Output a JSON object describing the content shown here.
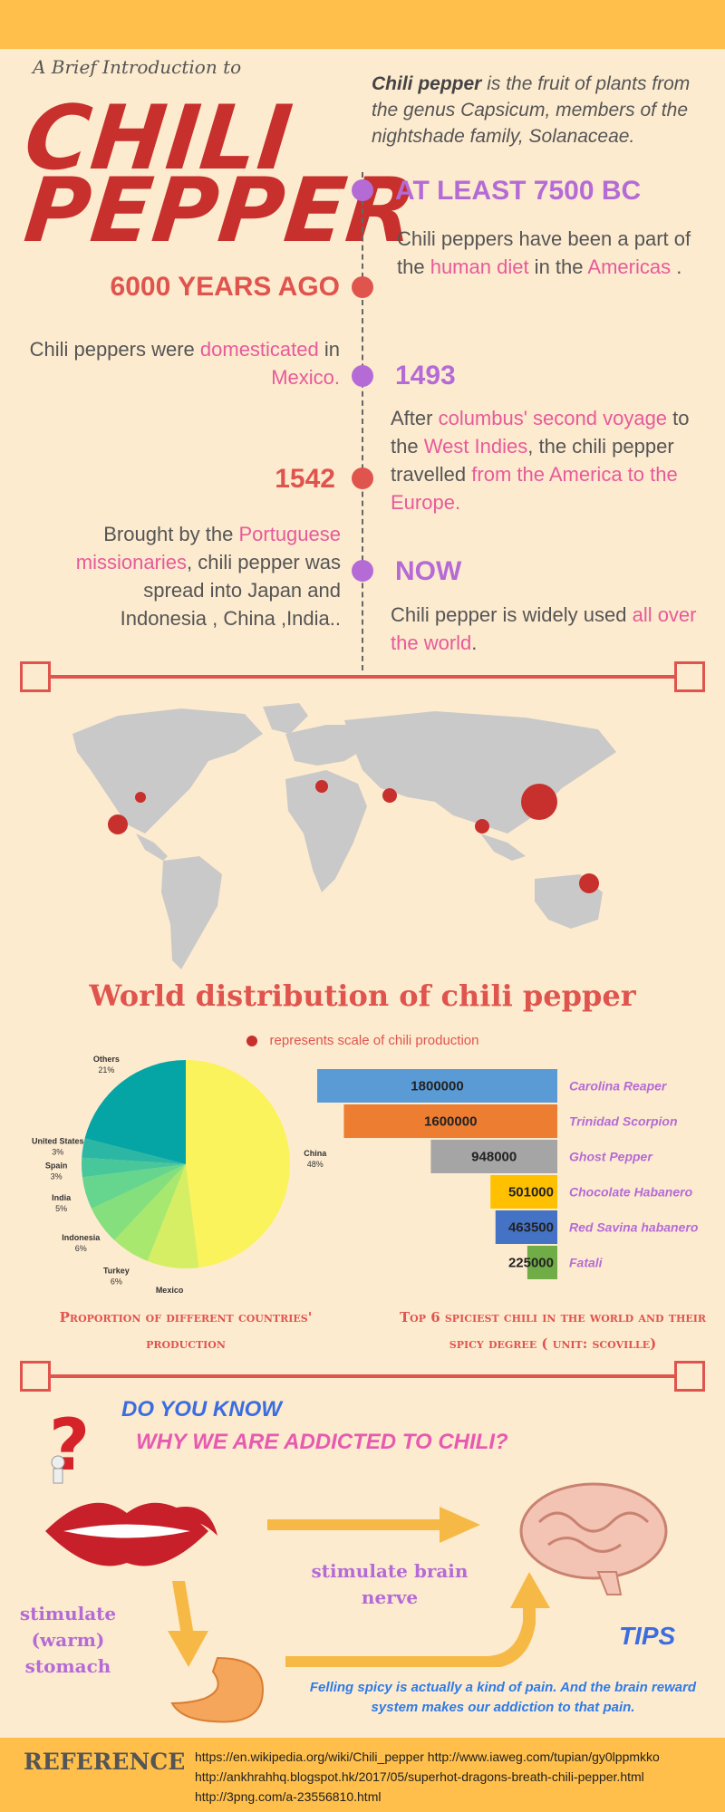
{
  "header": {
    "intro": "A Brief Introduction to",
    "title_line1": "CHILI",
    "title_line2": "PEPPER"
  },
  "description": {
    "bold": "Chili pepper",
    "rest": " is the fruit of plants from the genus Capsicum, members of the nightshade family, Solanaceae."
  },
  "timeline": {
    "e1": {
      "heading": "AT LEAST 7500 BC",
      "t1": "Chili peppers have been a part of the ",
      "h1": "human diet",
      "t2": " in the ",
      "h2": "Americas",
      "t3": " ."
    },
    "e2": {
      "heading": "6000 YEARS AGO",
      "t1": "Chili peppers were ",
      "h1": "domesticated",
      "t2": " in ",
      "h2": "Mexico."
    },
    "e3": {
      "heading": "1493",
      "t1": "After ",
      "h1": "columbus' second voyage",
      "t2": " to the ",
      "h2": "West Indies",
      "t3": ", the chili pepper travelled ",
      "h3": "from the America to the Europe."
    },
    "e4": {
      "heading": "1542",
      "t1": "Brought by the ",
      "h1": "Portuguese missionaries",
      "t2": ", chili pepper was spread into Japan and Indonesia , China ,India.."
    },
    "e5": {
      "heading": "NOW",
      "t1": "Chili pepper is widely used ",
      "h1": "all over the world",
      "t2": "."
    }
  },
  "map": {
    "title": "World distribution of chili pepper",
    "legend": "represents scale of chili production"
  },
  "colors": {
    "accent_red": "#e0544e",
    "accent_purple": "#b56bd6",
    "pink": "#e75a9a",
    "banner": "#ffbf4a"
  },
  "chart_data": [
    {
      "type": "pie",
      "caption": "Proportion of different countries' production",
      "categories": [
        "China",
        "Mexico",
        "Turkey",
        "Indonesia",
        "India",
        "Spain",
        "United States",
        "Others"
      ],
      "values": [
        48,
        8,
        6,
        6,
        5,
        3,
        3,
        21
      ],
      "labels": [
        "48%",
        "8%",
        "6%",
        "6%",
        "5%",
        "3%",
        "3%",
        "21%"
      ],
      "colors": [
        "#fbf35b",
        "#d6ee64",
        "#a9e86e",
        "#85df7c",
        "#66d58d",
        "#48c79b",
        "#2bb7a4",
        "#05a5a5"
      ]
    },
    {
      "type": "bar",
      "orientation": "horizontal",
      "caption": "Top 6 spiciest chili in the world and their spicy degree ( unit: scoville)",
      "categories": [
        "Carolina Reaper",
        "Trinidad Scorpion",
        "Ghost Pepper",
        "Chocolate Habanero",
        "Red Savina habanero",
        "Fatali"
      ],
      "values": [
        1800000,
        1600000,
        948000,
        501000,
        463500,
        225000
      ],
      "value_labels": [
        "1800000",
        "1600000",
        "948000",
        "501000",
        "463500",
        "225000"
      ],
      "colors": [
        "#5b9bd5",
        "#ed7d31",
        "#a5a5a5",
        "#ffc000",
        "#4472c4",
        "#70ad47"
      ]
    }
  ],
  "addiction": {
    "q1": "DO YOU KNOW",
    "q2": "WHY WE ARE ADDICTED TO CHILI?",
    "brain": "stimulate brain nerve",
    "stomach": "stimulate (warm) stomach",
    "tips_title": "TIPS",
    "tips_text": "Felling spicy is actually a kind of pain. And the brain reward system makes our addiction to that pain."
  },
  "reference": {
    "label": "REFERENCE",
    "links": [
      "https://en.wikipedia.org/wiki/Chili_pepper   http://www.iaweg.com/tupian/gy0lppmkko",
      "http://ankhrahhq.blogspot.hk/2017/05/superhot-dragons-breath-chili-pepper.html",
      "http://3png.com/a-23556810.html"
    ]
  }
}
